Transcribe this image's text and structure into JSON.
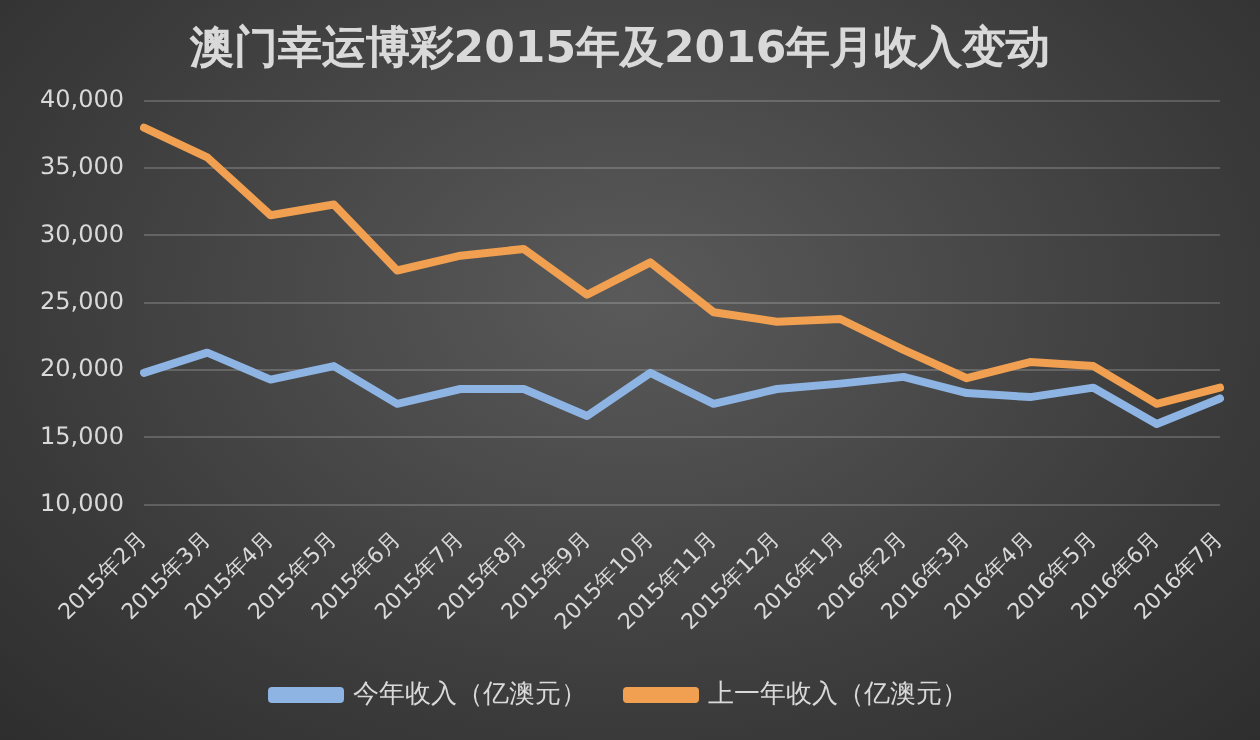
{
  "chart_data": {
    "type": "line",
    "title": "澳门幸运博彩2015年及2016年月收入变动",
    "categories": [
      "2015年2月",
      "2015年3月",
      "2015年4月",
      "2015年5月",
      "2015年6月",
      "2015年7月",
      "2015年8月",
      "2015年9月",
      "2015年10月",
      "2015年11月",
      "2015年12月",
      "2016年1月",
      "2016年2月",
      "2016年3月",
      "2016年4月",
      "2016年5月",
      "2016年6月",
      "2016年7月"
    ],
    "series": [
      {
        "name": "今年收入（亿澳元）",
        "color": "#8eb4e3",
        "values": [
          19800,
          21300,
          19300,
          20300,
          17500,
          18600,
          18600,
          16600,
          19800,
          17500,
          18600,
          19000,
          19500,
          18300,
          18000,
          18700,
          16000,
          17900
        ]
      },
      {
        "name": "上一年收入（亿澳元）",
        "color": "#f0a050",
        "values": [
          38000,
          35800,
          31500,
          32300,
          27400,
          28500,
          29000,
          25600,
          28000,
          24300,
          23600,
          23800,
          21500,
          19400,
          20600,
          20300,
          17500,
          18700
        ]
      }
    ],
    "ylim": [
      10000,
      40000
    ],
    "yticks": [
      {
        "value": 10000,
        "label": "10,000"
      },
      {
        "value": 15000,
        "label": "15,000"
      },
      {
        "value": 20000,
        "label": "20,000"
      },
      {
        "value": 25000,
        "label": "25,000"
      },
      {
        "value": 30000,
        "label": "30,000"
      },
      {
        "value": 35000,
        "label": "35,000"
      },
      {
        "value": 40000,
        "label": "40,000"
      }
    ],
    "grid": "y",
    "legend": "bottom",
    "marker": "none",
    "line_style": "solid"
  }
}
